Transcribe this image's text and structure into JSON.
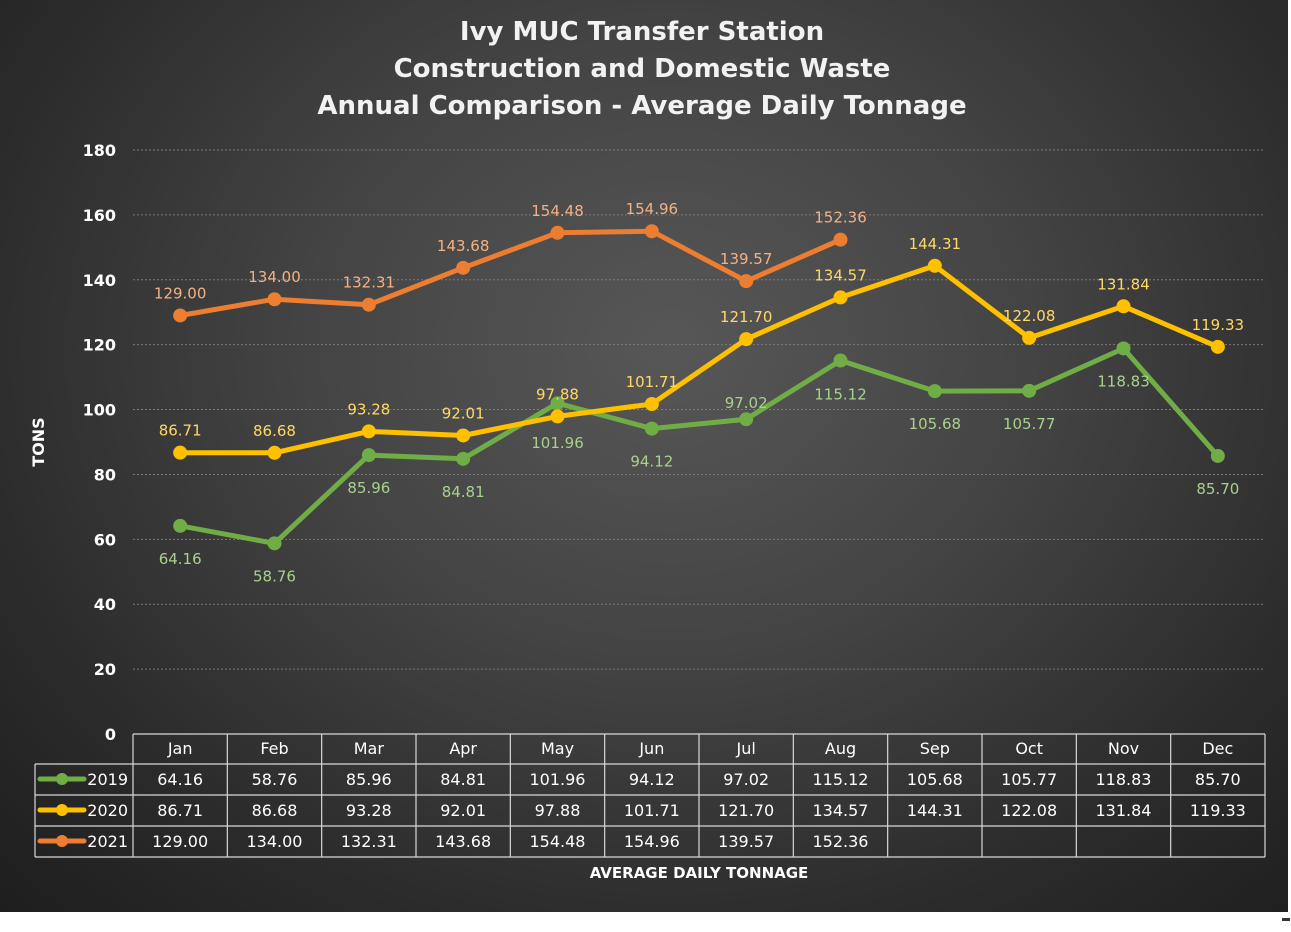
{
  "chart_data": {
    "type": "line",
    "title": [
      "Ivy MUC Transfer Station",
      "Construction and Domestic Waste",
      "Annual Comparison - Average Daily Tonnage"
    ],
    "ylabel": "TONS",
    "xlabel": "AVERAGE DAILY TONNAGE",
    "ylim": [
      0,
      180
    ],
    "yticks": [
      0,
      20,
      40,
      60,
      80,
      100,
      120,
      140,
      160,
      180
    ],
    "grid": true,
    "legend": "data-table-left",
    "categories": [
      "Jan",
      "Feb",
      "Mar",
      "Apr",
      "May",
      "Jun",
      "Jul",
      "Aug",
      "Sep",
      "Oct",
      "Nov",
      "Dec"
    ],
    "series": [
      {
        "name": "2019",
        "color": "#70ad47",
        "label_color": "#a9d18e",
        "values": [
          64.16,
          58.76,
          85.96,
          84.81,
          101.96,
          94.12,
          97.02,
          115.12,
          105.68,
          105.77,
          118.83,
          85.7
        ],
        "labels": [
          "64.16",
          "58.76",
          "85.96",
          "84.81",
          "101.96",
          "94.12",
          "97.02",
          "115.12",
          "105.68",
          "105.77",
          "118.83",
          "85.70"
        ]
      },
      {
        "name": "2020",
        "color": "#ffc000",
        "label_color": "#ffd966",
        "values": [
          86.71,
          86.68,
          93.28,
          92.01,
          97.88,
          101.71,
          121.7,
          134.57,
          144.31,
          122.08,
          131.84,
          119.33
        ],
        "labels": [
          "86.71",
          "86.68",
          "93.28",
          "92.01",
          "97.88",
          "101.71",
          "121.70",
          "134.57",
          "144.31",
          "122.08",
          "131.84",
          "119.33"
        ]
      },
      {
        "name": "2021",
        "color": "#ed7d31",
        "label_color": "#f4b183",
        "values": [
          129.0,
          134.0,
          132.31,
          143.68,
          154.48,
          154.96,
          139.57,
          152.36,
          null,
          null,
          null,
          null
        ],
        "labels": [
          "129.00",
          "134.00",
          "132.31",
          "143.68",
          "154.48",
          "154.96",
          "139.57",
          "152.36",
          "",
          "",
          "",
          ""
        ]
      }
    ]
  }
}
